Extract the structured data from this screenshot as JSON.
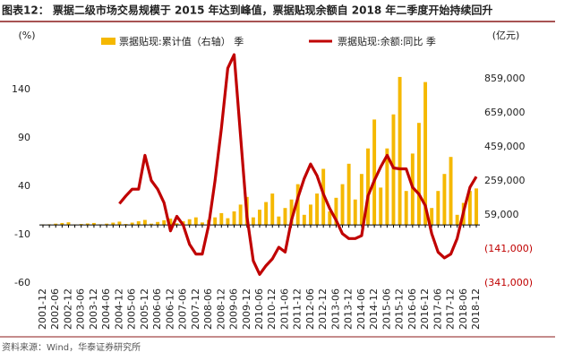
{
  "title": "图表12：  票据二级市场交易规模于 2015 年达到峰值，票据贴现余额自 2018 年二季度开始持续回升",
  "source": "资料来源：Wind，华泰证券研究所",
  "chart_data": {
    "type": "bar-line",
    "y_label": "(%)",
    "y2_label": "(亿元)",
    "categories": [
      "2001-12",
      null,
      "2002-06",
      null,
      "2002-12",
      null,
      "2003-06",
      null,
      "2003-12",
      null,
      "2004-06",
      null,
      "2004-12",
      null,
      "2005-06",
      null,
      "2005-12",
      null,
      "2006-06",
      null,
      "2006-12",
      null,
      "2007-06",
      null,
      "2007-12",
      null,
      "2008-06",
      null,
      "2008-12",
      null,
      "2009-06",
      null,
      "2009-12",
      null,
      "2010-06",
      null,
      "2010-12",
      null,
      "2011-06",
      null,
      "2011-12",
      null,
      "2012-06",
      null,
      "2012-12",
      null,
      "2013-06",
      null,
      "2013-12",
      null,
      "2014-06",
      null,
      "2014-12",
      null,
      "2015-06",
      null,
      "2015-12",
      null,
      "2016-06",
      null,
      "2016-12",
      null,
      "2017-06",
      null,
      "2017-12",
      null,
      "2018-06",
      null,
      "2018-12"
    ],
    "series": [
      {
        "name": "票据贴现:累计值（右轴） 季",
        "type": "bar",
        "axis": "y2",
        "color": "#f5b800",
        "values": [
          3000,
          4000,
          8000,
          12000,
          16000,
          3000,
          6000,
          9000,
          12000,
          4000,
          8000,
          14000,
          20000,
          6000,
          14000,
          22000,
          30000,
          8000,
          18000,
          28000,
          38000,
          10000,
          22000,
          34000,
          45000,
          15000,
          30000,
          45000,
          70000,
          40000,
          80000,
          120000,
          165000,
          45000,
          90000,
          135000,
          185000,
          50000,
          100000,
          150000,
          240000,
          60000,
          120000,
          185000,
          330000,
          80000,
          160000,
          240000,
          360000,
          150000,
          300000,
          450000,
          620000,
          220000,
          450000,
          650000,
          870000,
          200000,
          420000,
          600000,
          840000,
          100000,
          200000,
          300000,
          400000,
          60000,
          130000,
          200000,
          215000
        ]
      },
      {
        "name": "票据贴现:余额:同比 季",
        "type": "line",
        "color": "#c00000",
        "values": [
          null,
          null,
          null,
          null,
          null,
          null,
          null,
          null,
          null,
          null,
          null,
          null,
          22,
          30,
          37,
          37,
          72,
          46,
          37,
          23,
          -6,
          9,
          0,
          -20,
          -30,
          -30,
          0,
          46,
          100,
          162,
          176,
          93,
          9,
          -37,
          -51,
          -42,
          -35,
          -23,
          -28,
          5,
          28,
          48,
          63,
          51,
          32,
          17,
          5,
          -9,
          -14,
          -14,
          -11,
          30,
          46,
          60,
          72,
          59,
          58,
          58,
          39,
          32,
          20,
          -9,
          -28,
          -34,
          -30,
          -14,
          14,
          39,
          50
        ]
      }
    ],
    "ylim": [
      -60,
      195.5
    ],
    "yticks": [
      -60,
      -10,
      40,
      90,
      140
    ],
    "y2lim": [
      -341000,
      1111600
    ],
    "y2ticks": [
      {
        "value": -341000,
        "label": "(341,000)"
      },
      {
        "value": -141000,
        "label": "(141,000)"
      },
      {
        "value": 59000,
        "label": "59,000"
      },
      {
        "value": 259000,
        "label": "259,000"
      },
      {
        "value": 459000,
        "label": "459,000"
      },
      {
        "value": 659000,
        "label": "659,000"
      },
      {
        "value": 859000,
        "label": "859,000"
      }
    ],
    "y2_negative_color": "#c00000"
  }
}
